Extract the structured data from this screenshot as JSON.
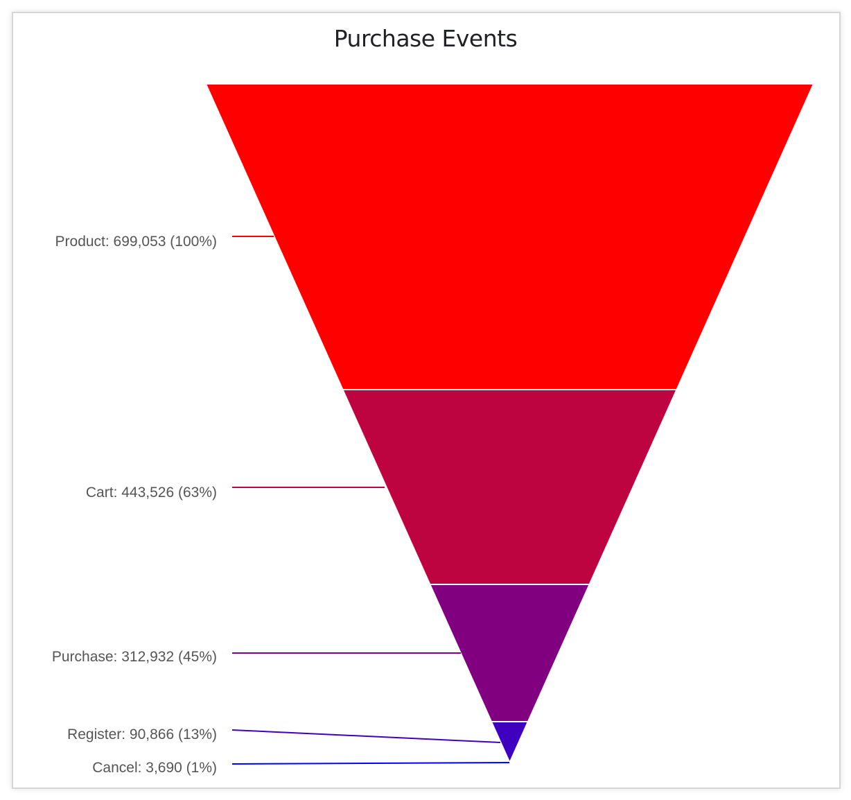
{
  "chart_data": {
    "type": "funnel",
    "title": "Purchase Events",
    "stages": [
      {
        "label": "Product: 699,053 (100%)",
        "name": "Product",
        "value": 699053,
        "percent": 100,
        "color": "#ff0000"
      },
      {
        "label": "Cart: 443,526 (63%)",
        "name": "Cart",
        "value": 443526,
        "percent": 63,
        "color": "#bd0440"
      },
      {
        "label": "Purchase: 312,932 (45%)",
        "name": "Purchase",
        "value": 312932,
        "percent": 45,
        "color": "#800080"
      },
      {
        "label": "Register: 90,866 (13%)",
        "name": "Register",
        "value": 90866,
        "percent": 13,
        "color": "#3f00c0"
      },
      {
        "label": "Cancel: 3,690 (1%)",
        "name": "Cancel",
        "value": 3690,
        "percent": 1,
        "color": "#0000ff"
      }
    ]
  }
}
